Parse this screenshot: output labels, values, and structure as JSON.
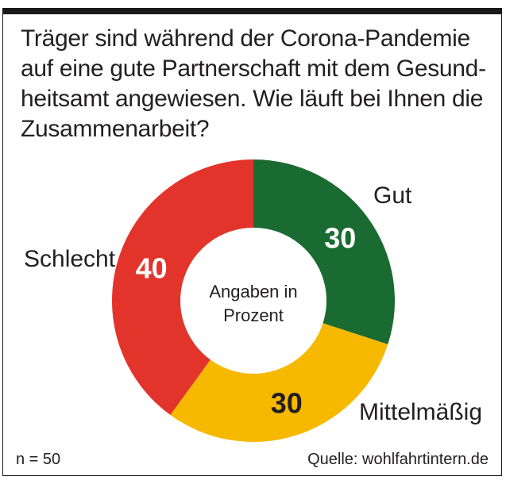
{
  "title": "Träger sind während der Corona-Pandemie\nauf eine gute Partnerschaft mit dem Gesund-\nheitsamt angewiesen. Wie läuft bei Ihnen die\nZusammenarbeit?",
  "chart_data": {
    "type": "pie",
    "donut": true,
    "center_label": [
      "Angaben in",
      "Prozent"
    ],
    "slices": [
      {
        "label": "Gut",
        "value": 30,
        "color": "#1a6b32",
        "value_color": "#ffffff"
      },
      {
        "label": "Mittelmäßig",
        "value": 30,
        "color": "#f7b900",
        "value_color": "#231f20"
      },
      {
        "label": "Schlecht",
        "value": 40,
        "color": "#e3342b",
        "value_color": "#ffffff"
      }
    ]
  },
  "footer": {
    "n": "n = 50",
    "source": "Quelle: wohlfahrtintern.de"
  }
}
